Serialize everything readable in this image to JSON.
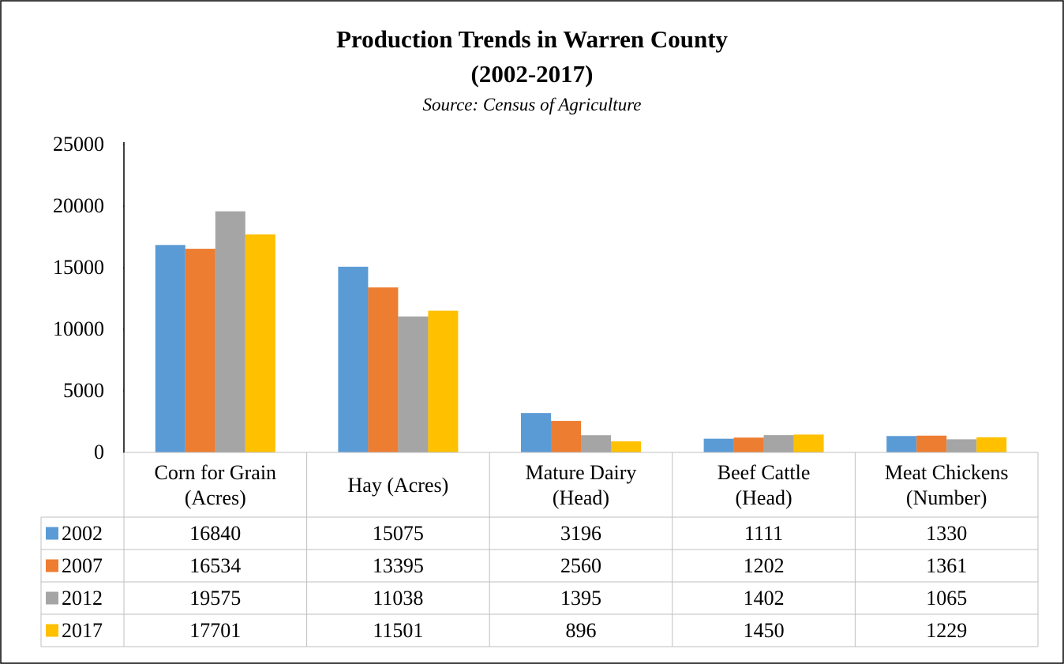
{
  "chart_data": {
    "type": "bar",
    "title": "Production Trends in Warren County",
    "subtitle": "(2002-2017)",
    "source": "Source: Census of Agriculture",
    "categories": [
      "Corn for Grain (Acres)",
      "Hay (Acres)",
      "Mature Dairy (Head)",
      "Beef Cattle (Head)",
      "Meat Chickens (Number)"
    ],
    "series": [
      {
        "name": "2002",
        "color": "#5b9bd5",
        "values": [
          16840,
          15075,
          3196,
          1111,
          1330
        ]
      },
      {
        "name": "2007",
        "color": "#ed7d31",
        "values": [
          16534,
          13395,
          2560,
          1202,
          1361
        ]
      },
      {
        "name": "2012",
        "color": "#a5a5a5",
        "values": [
          19575,
          11038,
          1395,
          1402,
          1065
        ]
      },
      {
        "name": "2017",
        "color": "#ffc000",
        "values": [
          17701,
          11501,
          896,
          1450,
          1229
        ]
      }
    ],
    "ylim": [
      0,
      25000
    ],
    "yticks": [
      0,
      5000,
      10000,
      15000,
      20000,
      25000
    ],
    "data_table": true
  }
}
